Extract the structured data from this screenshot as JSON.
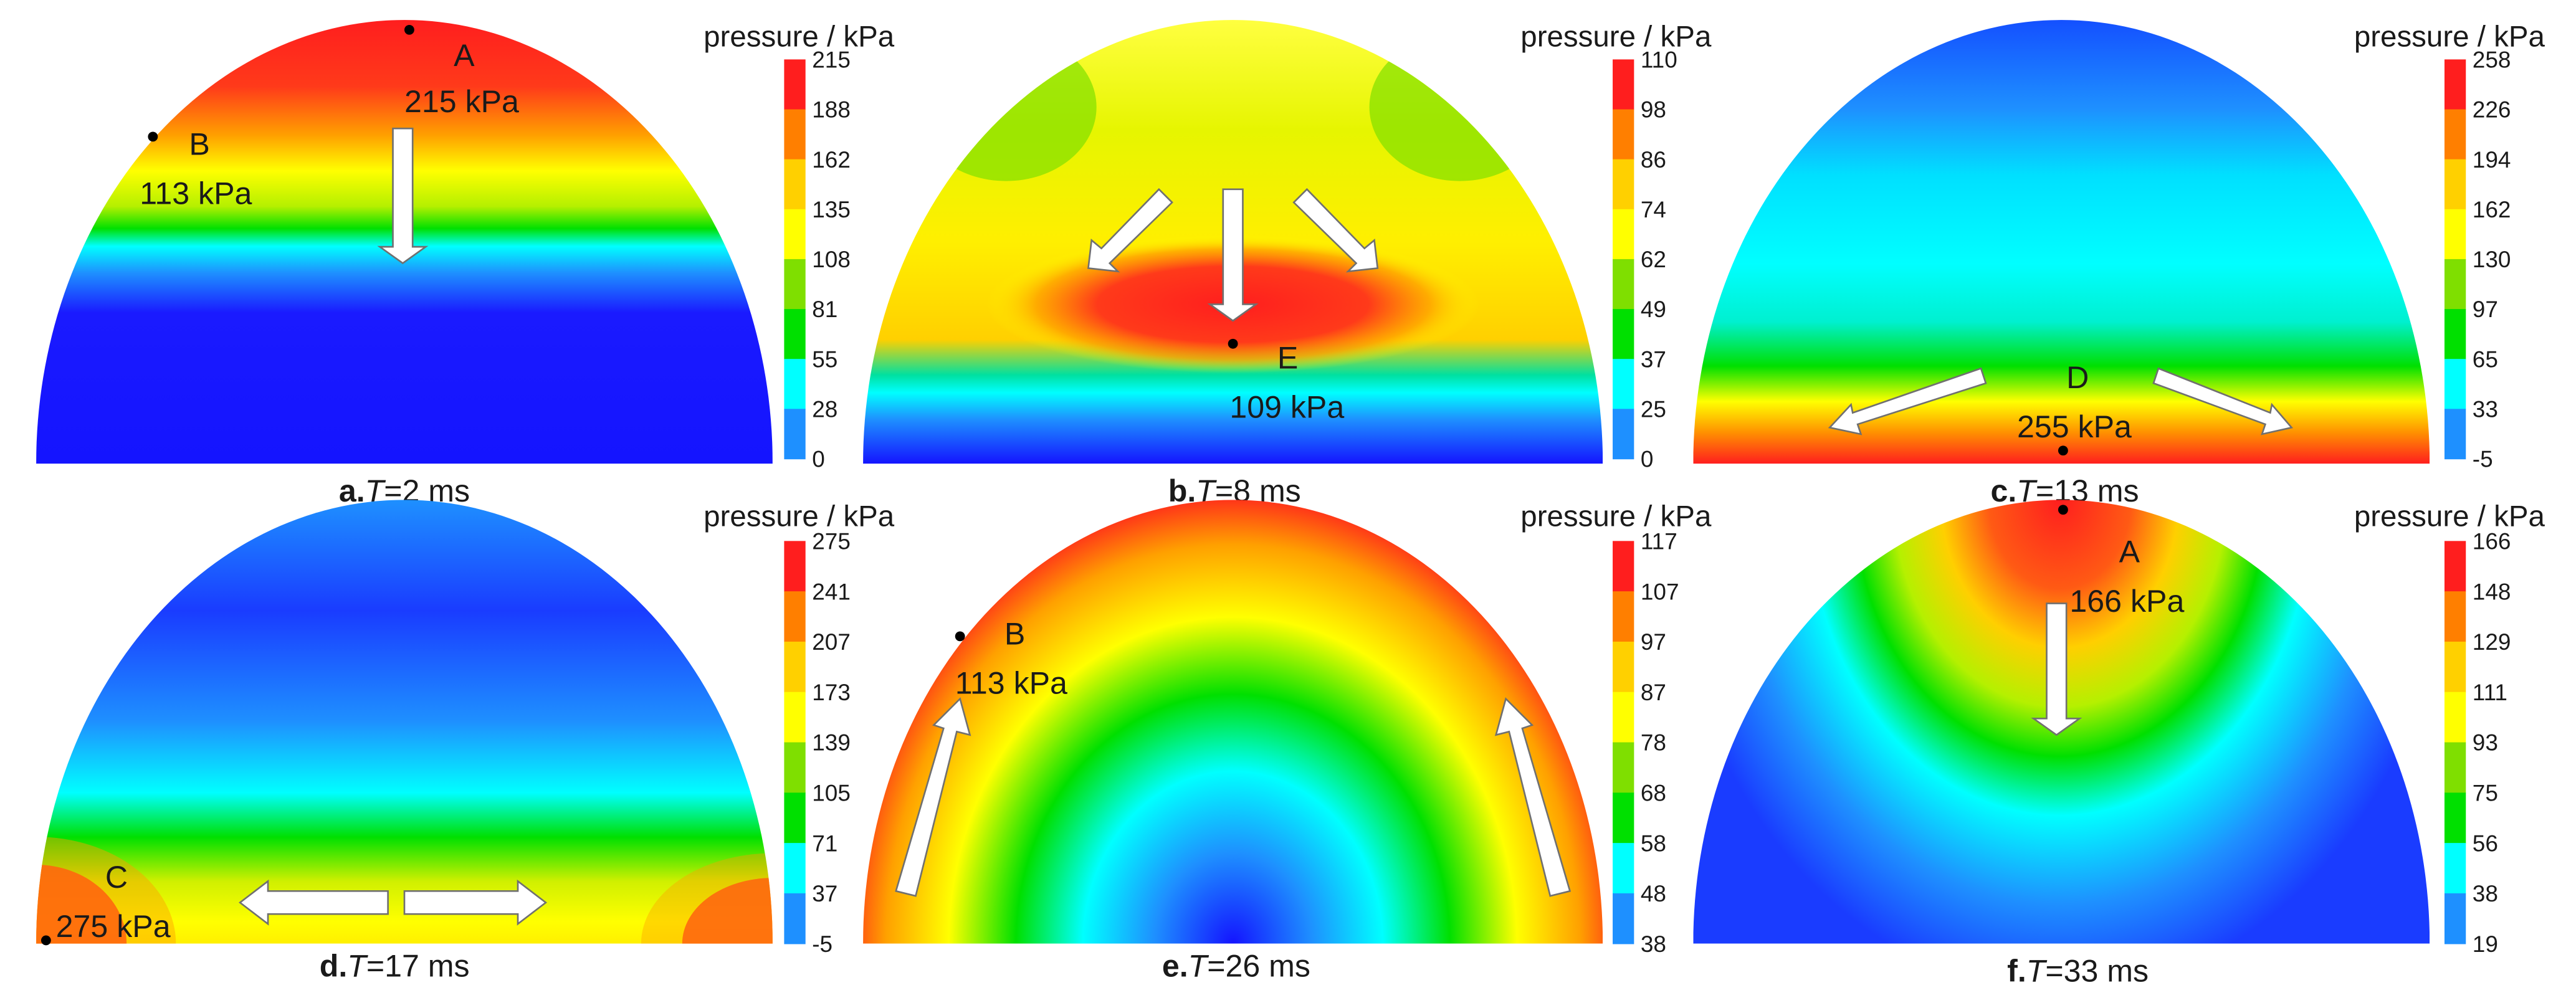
{
  "legend_title": "pressure / kPa",
  "panels": [
    {
      "id": "a",
      "caption_letter": "a.",
      "caption_var": "T",
      "caption_rest": "=2 ms",
      "scale_ticks": [
        "215",
        "188",
        "162",
        "135",
        "108",
        "81",
        "55",
        "28",
        "0"
      ],
      "points": [
        {
          "label": "A",
          "value": "215 kPa"
        },
        {
          "label": "B",
          "value": "113 kPa"
        }
      ]
    },
    {
      "id": "b",
      "caption_letter": "b.",
      "caption_var": "T",
      "caption_rest": "=8 ms",
      "scale_ticks": [
        "110",
        "98",
        "86",
        "74",
        "62",
        "49",
        "37",
        "25",
        "0"
      ],
      "points": [
        {
          "label": "E",
          "value": "109 kPa"
        }
      ]
    },
    {
      "id": "c",
      "caption_letter": "c.",
      "caption_var": "T",
      "caption_rest": "=13 ms",
      "scale_ticks": [
        "258",
        "226",
        "194",
        "162",
        "130",
        "97",
        "65",
        "33",
        "-5"
      ],
      "points": [
        {
          "label": "D",
          "value": "255 kPa"
        }
      ]
    },
    {
      "id": "d",
      "caption_letter": "d.",
      "caption_var": "T",
      "caption_rest": "=17 ms",
      "scale_ticks": [
        "275",
        "241",
        "207",
        "173",
        "139",
        "105",
        "71",
        "37",
        "-5"
      ],
      "points": [
        {
          "label": "C",
          "value": "275 kPa"
        }
      ]
    },
    {
      "id": "e",
      "caption_letter": "e.",
      "caption_var": "T",
      "caption_rest": "=26 ms",
      "scale_ticks": [
        "117",
        "107",
        "97",
        "87",
        "78",
        "68",
        "58",
        "48",
        "38"
      ],
      "points": [
        {
          "label": "B",
          "value": "113 kPa"
        }
      ]
    },
    {
      "id": "f",
      "caption_letter": "f.",
      "caption_var": "T",
      "caption_rest": "=33 ms",
      "scale_ticks": [
        "166",
        "148",
        "129",
        "111",
        "93",
        "75",
        "56",
        "38",
        "19"
      ],
      "points": [
        {
          "label": "A",
          "value": "166 kPa"
        }
      ]
    }
  ],
  "colors": {
    "scale_top_to_bottom": [
      "#ff1e1e",
      "#ff7f00",
      "#ffd000",
      "#ffff00",
      "#7fdf00",
      "#00e000",
      "#00ffff",
      "#1e90ff",
      "#1414ff"
    ],
    "arrow_fill": "#ffffff",
    "arrow_stroke": "#707070",
    "marker": "#000000"
  }
}
